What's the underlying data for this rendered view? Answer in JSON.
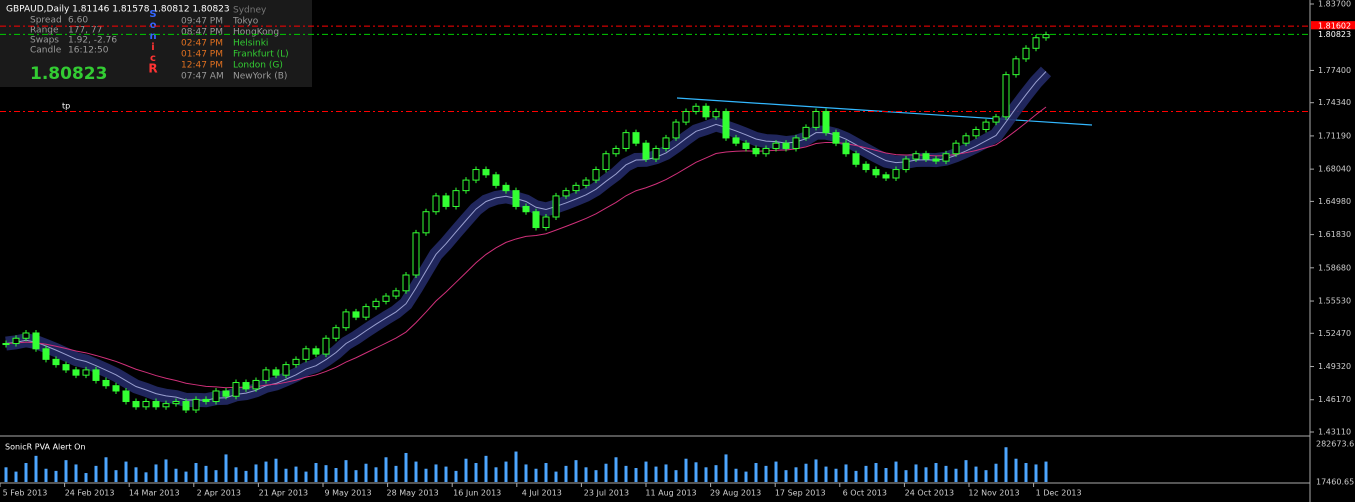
{
  "panel": {
    "symbol": "GBPAUD,Daily  1.81146 1.81578 1.80812 1.80823",
    "stats": [
      [
        "Spread",
        "6.60"
      ],
      [
        "Range",
        "177, 77"
      ],
      [
        "Swaps",
        "1.92, -2.76"
      ],
      [
        "Candle",
        "16:12:50"
      ]
    ],
    "price": "1.80823",
    "letters": [
      "S",
      "o",
      "n",
      "i",
      "c",
      "R"
    ],
    "sessions": [
      [
        "",
        "Sydney"
      ],
      [
        "09:47 PM",
        "Tokyo"
      ],
      [
        "08:47 PM",
        "HongKong"
      ],
      [
        "02:47 PM",
        "Helsinki"
      ],
      [
        "01:47 PM",
        "Frankfurt  (L)"
      ],
      [
        "12:47 PM",
        "London  (G)"
      ],
      [
        "07:47 AM",
        "NewYork  (B)"
      ]
    ]
  },
  "tp_label": "tp",
  "indicator_label": "SonicR PVA    Alert On",
  "chart_data": {
    "type": "candlestick",
    "series": [
      {
        "name": "GBPAUD",
        "color": "#33ff33",
        "values": [
          1.515,
          1.52,
          1.525,
          1.51,
          1.5,
          1.495,
          1.49,
          1.485,
          1.49,
          1.48,
          1.475,
          1.47,
          1.46,
          1.455,
          1.46,
          1.455,
          1.458,
          1.46,
          1.452,
          1.462,
          1.46,
          1.47,
          1.465,
          1.478,
          1.472,
          1.48,
          1.49,
          1.485,
          1.495,
          1.5,
          1.51,
          1.505,
          1.52,
          1.53,
          1.545,
          1.54,
          1.55,
          1.555,
          1.56,
          1.565,
          1.58,
          1.62,
          1.64,
          1.655,
          1.645,
          1.66,
          1.67,
          1.68,
          1.675,
          1.665,
          1.66,
          1.645,
          1.64,
          1.625,
          1.635,
          1.655,
          1.66,
          1.665,
          1.67,
          1.68,
          1.695,
          1.7,
          1.715,
          1.705,
          1.69,
          1.7,
          1.71,
          1.725,
          1.735,
          1.74,
          1.73,
          1.735,
          1.71,
          1.705,
          1.7,
          1.695,
          1.7,
          1.705,
          1.7,
          1.71,
          1.72,
          1.735,
          1.715,
          1.705,
          1.695,
          1.685,
          1.68,
          1.675,
          1.672,
          1.68,
          1.69,
          1.695,
          1.69,
          1.688,
          1.695,
          1.705,
          1.712,
          1.718,
          1.725,
          1.73,
          1.77,
          1.785,
          1.795,
          1.805,
          1.808
        ]
      },
      {
        "name": "Volume",
        "color": "#4da6ff",
        "values": [
          120000,
          90000,
          150000,
          200000,
          110000,
          95000,
          170000,
          140000,
          80000,
          130000,
          190000,
          100000,
          160000,
          120000,
          85000,
          140000,
          175000,
          110000,
          90000,
          150000,
          130000,
          100000,
          210000,
          120000,
          95000,
          140000,
          160000,
          180000,
          110000,
          125000,
          90000,
          150000,
          135000,
          115000,
          170000,
          100000,
          145000,
          120000,
          190000,
          130000,
          220000,
          160000,
          110000,
          140000,
          125000,
          95000,
          180000,
          150000,
          200000,
          120000,
          160000,
          230000,
          140000,
          110000,
          150000,
          90000,
          130000,
          170000,
          120000,
          100000,
          145000,
          190000,
          130000,
          115000,
          160000,
          125000,
          140000,
          100000,
          180000,
          155000,
          120000,
          135000,
          210000,
          110000,
          90000,
          150000,
          130000,
          160000,
          100000,
          120000,
          145000,
          175000,
          125000,
          110000,
          140000,
          95000,
          130000,
          150000,
          115000,
          160000,
          100000,
          140000,
          120000,
          150000,
          130000,
          110000,
          170000,
          125000,
          100000,
          145000,
          260000,
          180000,
          150000,
          140000,
          160000
        ]
      }
    ],
    "xlabels": [
      "5 Feb 2013",
      "24 Feb 2013",
      "14 Mar 2013",
      "2 Apr 2013",
      "21 Apr 2013",
      "9 May 2013",
      "28 May 2013",
      "16 Jun 2013",
      "4 Jul 2013",
      "23 Jul 2013",
      "11 Aug 2013",
      "29 Aug 2013",
      "17 Sep 2013",
      "6 Oct 2013",
      "24 Oct 2013",
      "12 Nov 2013",
      "1 Dec 2013"
    ],
    "ylim": [
      1.4311,
      1.837
    ],
    "yticks": [
      {
        "value": 1.837,
        "label": "1.83700"
      },
      {
        "value": 1.774,
        "label": "1.77400"
      },
      {
        "value": 1.7434,
        "label": "1.74340"
      },
      {
        "value": 1.7119,
        "label": "1.71190"
      },
      {
        "value": 1.6804,
        "label": "1.68040"
      },
      {
        "value": 1.6498,
        "label": "1.64980"
      },
      {
        "value": 1.6183,
        "label": "1.61830"
      },
      {
        "value": 1.5868,
        "label": "1.58680"
      },
      {
        "value": 1.5553,
        "label": "1.55530"
      },
      {
        "value": 1.5247,
        "label": "1.52470"
      },
      {
        "value": 1.4932,
        "label": "1.49320"
      },
      {
        "value": 1.4617,
        "label": "1.46170"
      },
      {
        "value": 1.4311,
        "label": "1.43110"
      }
    ],
    "levels": [
      {
        "value": 1.81602,
        "color": "#ff0000"
      },
      {
        "value": 1.80823,
        "color": "#00cc00"
      },
      {
        "value": 1.735,
        "color": "#ff0000"
      }
    ],
    "y2lim": [
      17460.65,
      282673.6
    ],
    "y2ticks": [
      17460.65,
      282673.6
    ]
  }
}
